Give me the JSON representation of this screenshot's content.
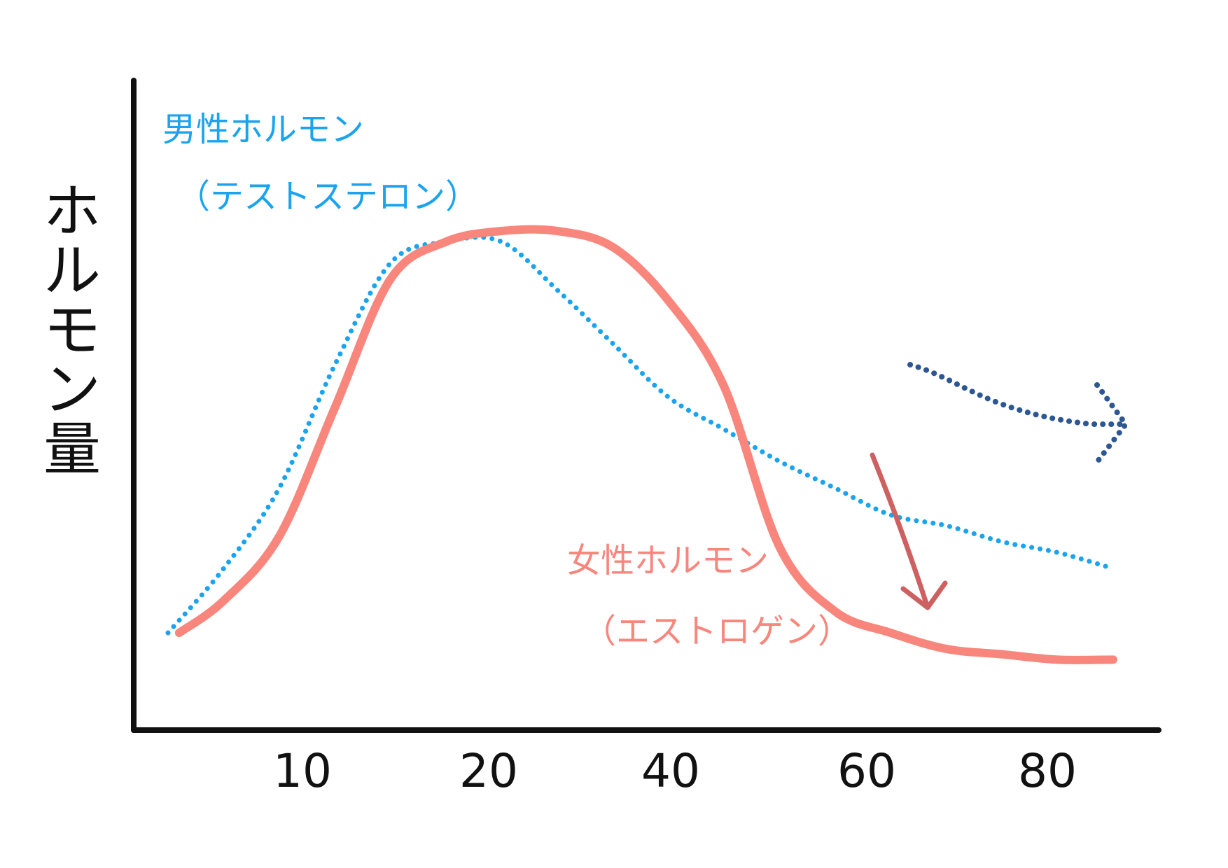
{
  "chart_data": {
    "type": "line",
    "ylabel": "ホルモン量",
    "xlabel": "",
    "x_ticks": [
      "10",
      "20",
      "40",
      "60",
      "80"
    ],
    "grid": false,
    "series": [
      {
        "name": "男性ホルモン",
        "subname": "（テストステロン）",
        "style": "dotted",
        "color": "#1aa3ef",
        "values": [
          [
            0,
            6
          ],
          [
            5,
            18
          ],
          [
            10,
            33
          ],
          [
            15,
            56
          ],
          [
            20,
            75
          ],
          [
            25,
            79
          ],
          [
            30,
            79
          ],
          [
            35,
            70
          ],
          [
            40,
            60
          ],
          [
            45,
            50
          ],
          [
            50,
            44
          ],
          [
            55,
            38
          ],
          [
            60,
            33
          ],
          [
            65,
            28
          ],
          [
            70,
            26
          ],
          [
            75,
            23
          ],
          [
            80,
            21
          ],
          [
            85,
            18
          ]
        ]
      },
      {
        "name": "女性ホルモン",
        "subname": "（エストロゲン）",
        "style": "solid",
        "color": "#f8867c",
        "values": [
          [
            1,
            6
          ],
          [
            5,
            12
          ],
          [
            10,
            24
          ],
          [
            15,
            48
          ],
          [
            20,
            72
          ],
          [
            25,
            79
          ],
          [
            30,
            81
          ],
          [
            35,
            81
          ],
          [
            40,
            78
          ],
          [
            45,
            68
          ],
          [
            50,
            52
          ],
          [
            55,
            22
          ],
          [
            60,
            10
          ],
          [
            65,
            6
          ],
          [
            70,
            3
          ],
          [
            75,
            2
          ],
          [
            80,
            1
          ],
          [
            85,
            1
          ]
        ]
      }
    ],
    "annotations": [
      {
        "type": "arrow",
        "meaning": "decline",
        "color": "#cd6060"
      },
      {
        "type": "arrow",
        "meaning": "continue",
        "color": "#2c5793"
      }
    ]
  }
}
